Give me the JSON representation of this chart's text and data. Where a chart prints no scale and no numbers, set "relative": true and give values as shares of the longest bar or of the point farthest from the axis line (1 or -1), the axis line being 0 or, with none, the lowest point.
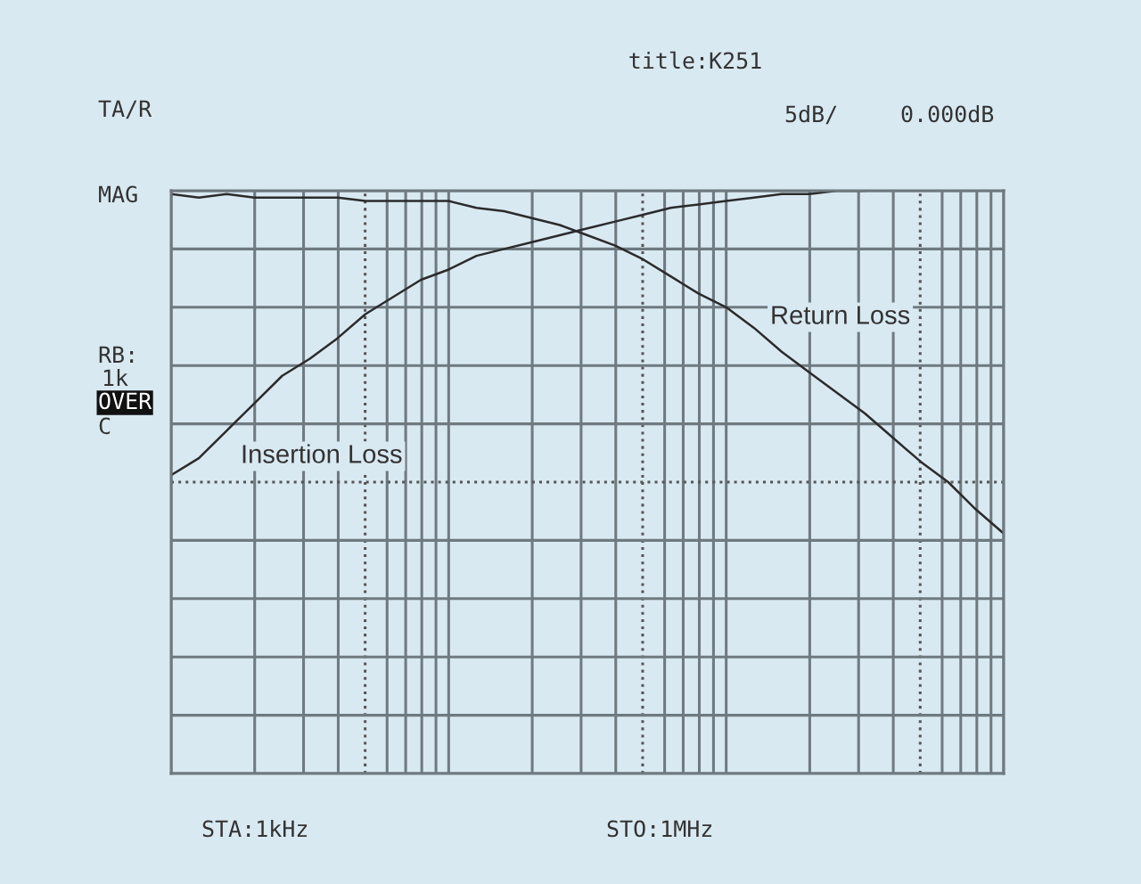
{
  "chart_data": {
    "type": "line",
    "title": "title:K251",
    "annotations": [
      "TA/R",
      "5dB/",
      "0.000dB",
      "MAG",
      "RB:",
      "1k",
      "OVER",
      "C",
      "STA:1kHz",
      "STO:1MHz"
    ],
    "relative": true,
    "grid": true,
    "marker": "none",
    "line_style": "solid",
    "categories": [
      null,
      null,
      null,
      null,
      null,
      null,
      null,
      null,
      null,
      null,
      null,
      null,
      null,
      null,
      null,
      null,
      null,
      null,
      null,
      null,
      null,
      null,
      null,
      null,
      null,
      null,
      null,
      null,
      null,
      null,
      null
    ],
    "series": [
      {
        "name": "Insertion Loss",
        "color": "#2b2b2b",
        "values": [
          -0.83,
          -0.78,
          -0.7,
          -0.62,
          -0.54,
          -0.49,
          -0.43,
          -0.36,
          -0.31,
          -0.26,
          -0.23,
          -0.19,
          -0.17,
          -0.15,
          -0.13,
          -0.11,
          -0.09,
          -0.07,
          -0.05,
          -0.04,
          -0.03,
          -0.02,
          -0.01,
          -0.01,
          0,
          0,
          null,
          null,
          null,
          null,
          null
        ]
      },
      {
        "name": "Return Loss",
        "color": "#2b2b2b",
        "values": [
          -0.01,
          -0.02,
          -0.01,
          -0.02,
          -0.02,
          -0.02,
          -0.02,
          -0.03,
          -0.03,
          -0.03,
          -0.03,
          -0.05,
          -0.06,
          -0.08,
          -0.1,
          -0.13,
          -0.16,
          -0.2,
          -0.25,
          -0.3,
          -0.34,
          -0.4,
          -0.47,
          -0.53,
          -0.59,
          -0.65,
          -0.72,
          -0.79,
          -0.85,
          -0.93,
          -1
        ]
      }
    ]
  }
}
